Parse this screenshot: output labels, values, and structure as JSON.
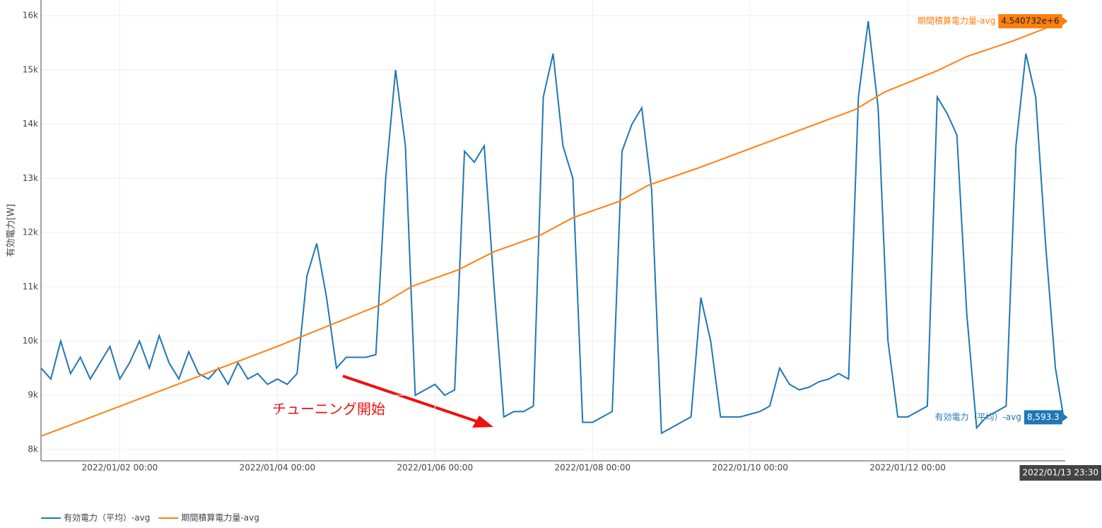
{
  "chart_data": {
    "type": "line",
    "ylabel": "有効電力[W]",
    "annotation": "チューニング開始",
    "xlim": [
      "2022/01/01 00:00",
      "2022/01/14 00:00"
    ],
    "xticks": [
      "2022/01/02 00:00",
      "2022/01/04 00:00",
      "2022/01/06 00:00",
      "2022/01/08 00:00",
      "2022/01/10 00:00",
      "2022/01/12 00:00"
    ],
    "ylim": [
      7790,
      16290
    ],
    "yticks": [
      {
        "value": 8000,
        "label": "8k"
      },
      {
        "value": 9000,
        "label": "9k"
      },
      {
        "value": 10000,
        "label": "10k"
      },
      {
        "value": 11000,
        "label": "11k"
      },
      {
        "value": 12000,
        "label": "12k"
      },
      {
        "value": 13000,
        "label": "13k"
      },
      {
        "value": 14000,
        "label": "14k"
      },
      {
        "value": 15000,
        "label": "15k"
      },
      {
        "value": 16000,
        "label": "16k"
      }
    ],
    "y2lim": [
      -270000,
      4773000
    ],
    "grid": true,
    "legend": "bottom-left",
    "series": [
      {
        "name": "有効電力（平均）-avg",
        "color": "#1f77b4",
        "end_label": "8,593.3",
        "x": [
          "2022/01/01 00:00",
          "2022/01/01 03:00",
          "2022/01/01 06:00",
          "2022/01/01 09:00",
          "2022/01/01 12:00",
          "2022/01/01 15:00",
          "2022/01/01 18:00",
          "2022/01/01 21:00",
          "2022/01/02 00:00",
          "2022/01/02 03:00",
          "2022/01/02 06:00",
          "2022/01/02 09:00",
          "2022/01/02 12:00",
          "2022/01/02 15:00",
          "2022/01/02 18:00",
          "2022/01/02 21:00",
          "2022/01/03 00:00",
          "2022/01/03 03:00",
          "2022/01/03 06:00",
          "2022/01/03 09:00",
          "2022/01/03 12:00",
          "2022/01/03 15:00",
          "2022/01/03 18:00",
          "2022/01/03 21:00",
          "2022/01/04 00:00",
          "2022/01/04 03:00",
          "2022/01/04 06:00",
          "2022/01/04 09:00",
          "2022/01/04 12:00",
          "2022/01/04 15:00",
          "2022/01/04 18:00",
          "2022/01/04 21:00",
          "2022/01/05 00:00",
          "2022/01/05 03:00",
          "2022/01/05 06:00",
          "2022/01/05 09:00",
          "2022/01/05 12:00",
          "2022/01/05 15:00",
          "2022/01/05 18:00",
          "2022/01/05 21:00",
          "2022/01/06 00:00",
          "2022/01/06 03:00",
          "2022/01/06 06:00",
          "2022/01/06 09:00",
          "2022/01/06 12:00",
          "2022/01/06 15:00",
          "2022/01/06 18:00",
          "2022/01/06 21:00",
          "2022/01/07 00:00",
          "2022/01/07 03:00",
          "2022/01/07 06:00",
          "2022/01/07 09:00",
          "2022/01/07 12:00",
          "2022/01/07 15:00",
          "2022/01/07 18:00",
          "2022/01/07 21:00",
          "2022/01/08 00:00",
          "2022/01/08 03:00",
          "2022/01/08 06:00",
          "2022/01/08 09:00",
          "2022/01/08 12:00",
          "2022/01/08 15:00",
          "2022/01/08 18:00",
          "2022/01/08 21:00",
          "2022/01/09 00:00",
          "2022/01/09 03:00",
          "2022/01/09 06:00",
          "2022/01/09 09:00",
          "2022/01/09 12:00",
          "2022/01/09 15:00",
          "2022/01/09 18:00",
          "2022/01/09 21:00",
          "2022/01/10 00:00",
          "2022/01/10 03:00",
          "2022/01/10 06:00",
          "2022/01/10 09:00",
          "2022/01/10 12:00",
          "2022/01/10 15:00",
          "2022/01/10 18:00",
          "2022/01/10 21:00",
          "2022/01/11 00:00",
          "2022/01/11 03:00",
          "2022/01/11 06:00",
          "2022/01/11 09:00",
          "2022/01/11 12:00",
          "2022/01/11 15:00",
          "2022/01/11 18:00",
          "2022/01/11 21:00",
          "2022/01/12 00:00",
          "2022/01/12 03:00",
          "2022/01/12 06:00",
          "2022/01/12 09:00",
          "2022/01/12 12:00",
          "2022/01/12 15:00",
          "2022/01/12 18:00",
          "2022/01/12 21:00",
          "2022/01/13 00:00",
          "2022/01/13 03:00",
          "2022/01/13 06:00",
          "2022/01/13 09:00",
          "2022/01/13 12:00",
          "2022/01/13 15:00",
          "2022/01/13 18:00",
          "2022/01/13 21:00",
          "2022/01/13 23:30"
        ],
        "values": [
          9500,
          9300,
          10000,
          9400,
          9700,
          9300,
          9600,
          9900,
          9300,
          9600,
          10000,
          9500,
          10100,
          9600,
          9300,
          9800,
          9400,
          9300,
          9500,
          9200,
          9600,
          9300,
          9400,
          9200,
          9300,
          9200,
          9400,
          11200,
          11800,
          10800,
          9500,
          9700,
          9700,
          9700,
          9750,
          13000,
          15000,
          13600,
          9000,
          9100,
          9200,
          9000,
          9100,
          13500,
          13300,
          13600,
          11000,
          8600,
          8700,
          8700,
          8800,
          14500,
          15300,
          13600,
          13000,
          8500,
          8500,
          8600,
          8700,
          13500,
          14000,
          14300,
          12800,
          8300,
          8400,
          8500,
          8600,
          10800,
          10000,
          8600,
          8600,
          8600,
          8650,
          8700,
          8800,
          9500,
          9200,
          9100,
          9150,
          9250,
          9300,
          9400,
          9300,
          14500,
          15900,
          14300,
          10000,
          8600,
          8600,
          8700,
          8800,
          14500,
          14200,
          13800,
          10500,
          8400,
          8600,
          8700,
          8800,
          13600,
          15300,
          14500,
          11800,
          9500,
          8593.3
        ]
      },
      {
        "name": "期間積算電力量-avg",
        "color": "#ff7f0e",
        "axis": "y2",
        "end_label": "4.540732e+6",
        "x": [
          "2022/01/01 00:00",
          "2022/01/04 00:00",
          "2022/01/05 08:00",
          "2022/01/05 17:00",
          "2022/01/06 07:00",
          "2022/01/06 18:00",
          "2022/01/07 08:00",
          "2022/01/07 18:00",
          "2022/01/08 08:00",
          "2022/01/08 17:00",
          "2022/01/09 08:00",
          "2022/01/11 08:00",
          "2022/01/11 17:00",
          "2022/01/12 09:00",
          "2022/01/12 18:00",
          "2022/01/13 08:00",
          "2022/01/13 23:30"
        ],
        "values": [
          0,
          982000,
          1446500,
          1640000,
          1818000,
          2019000,
          2197000,
          2390000,
          2568000,
          2746000,
          2932000,
          3574000,
          3767000,
          3999000,
          4154000,
          4324000,
          4540732
        ]
      }
    ]
  }
}
